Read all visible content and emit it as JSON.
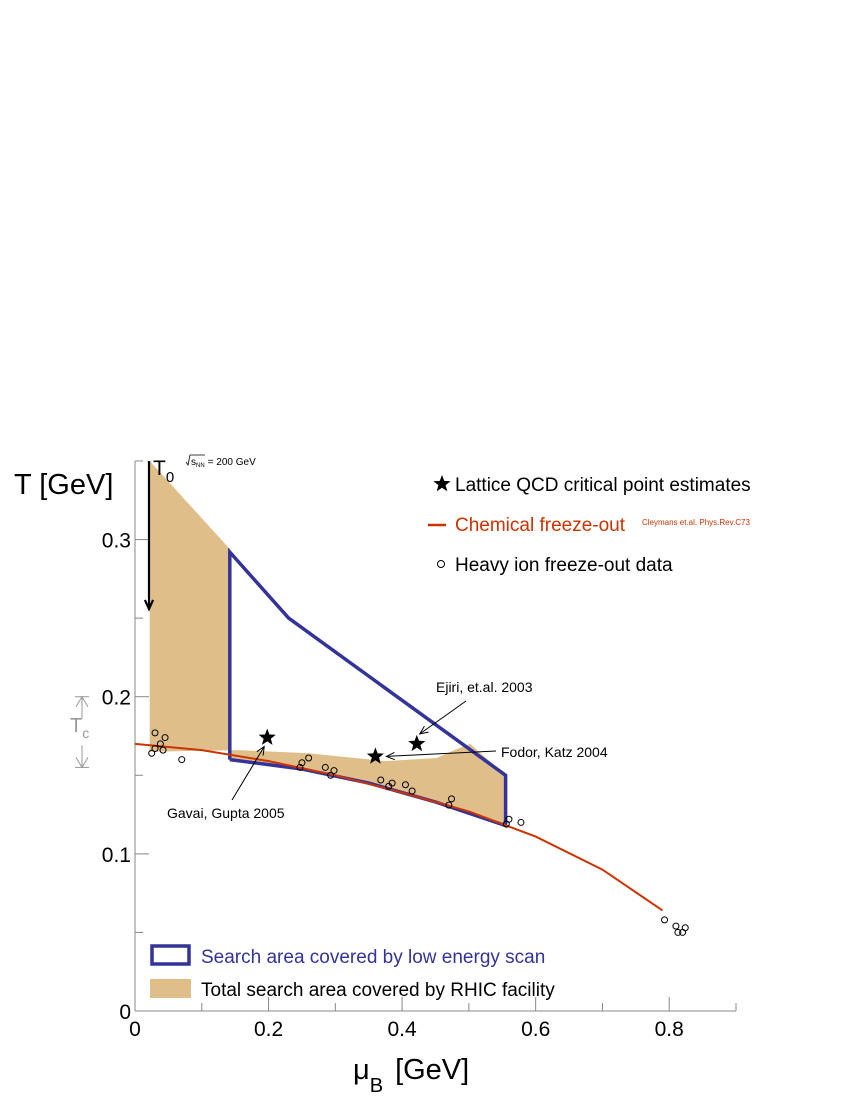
{
  "chart_data": {
    "type": "scatter",
    "xlabel_main": "μ",
    "xlabel_sub": "B",
    "xlabel_unit": "[GeV]",
    "ylabel": "T [GeV]",
    "xlim": [
      0,
      0.9
    ],
    "ylim": [
      0,
      0.35
    ],
    "x_ticks": [
      0,
      0.2,
      0.4,
      0.6,
      0.8
    ],
    "x_tick_labels": [
      "0",
      "0.2",
      "0.4",
      "0.6",
      "0.8"
    ],
    "y_ticks": [
      0,
      0.1,
      0.2,
      0.3
    ],
    "y_tick_labels": [
      "0",
      "0.1",
      "0.2",
      "0.3"
    ],
    "colors": {
      "search_area_fill": "#e0be8a",
      "low_energy_outline": "#33339a",
      "freezeout_curve": "#cc3300",
      "tc_marker": "#999999"
    },
    "total_search_area": [
      [
        0.022,
        0.35
      ],
      [
        0.142,
        0.294
      ],
      [
        0.142,
        0.16
      ],
      [
        0.25,
        0.154
      ],
      [
        0.35,
        0.145
      ],
      [
        0.45,
        0.133
      ],
      [
        0.555,
        0.118
      ],
      [
        0.555,
        0.15
      ],
      [
        0.502,
        0.17
      ],
      [
        0.478,
        0.166
      ],
      [
        0.452,
        0.161
      ],
      [
        0.375,
        0.159
      ],
      [
        0.26,
        0.164
      ],
      [
        0.155,
        0.166
      ],
      [
        0.022,
        0.165
      ]
    ],
    "low_energy_scan_area": [
      [
        0.142,
        0.16
      ],
      [
        0.142,
        0.292
      ],
      [
        0.23,
        0.25
      ],
      [
        0.555,
        0.15
      ],
      [
        0.555,
        0.118
      ],
      [
        0.45,
        0.133
      ],
      [
        0.35,
        0.145
      ],
      [
        0.25,
        0.154
      ],
      [
        0.142,
        0.16
      ]
    ],
    "freezeout_curve": {
      "name": "Chemical freeze-out",
      "points": [
        [
          0.0,
          0.17
        ],
        [
          0.1,
          0.166
        ],
        [
          0.2,
          0.159
        ],
        [
          0.3,
          0.15
        ],
        [
          0.4,
          0.139
        ],
        [
          0.5,
          0.127
        ],
        [
          0.6,
          0.111
        ],
        [
          0.7,
          0.09
        ],
        [
          0.79,
          0.064
        ]
      ]
    },
    "heavy_ion_data": {
      "name": "Heavy ion freeze-out data",
      "points": [
        [
          0.025,
          0.164
        ],
        [
          0.03,
          0.167
        ],
        [
          0.03,
          0.177
        ],
        [
          0.038,
          0.17
        ],
        [
          0.042,
          0.166
        ],
        [
          0.045,
          0.174
        ],
        [
          0.07,
          0.16
        ],
        [
          0.247,
          0.155
        ],
        [
          0.25,
          0.158
        ],
        [
          0.26,
          0.161
        ],
        [
          0.285,
          0.155
        ],
        [
          0.293,
          0.15
        ],
        [
          0.298,
          0.153
        ],
        [
          0.368,
          0.147
        ],
        [
          0.38,
          0.143
        ],
        [
          0.385,
          0.145
        ],
        [
          0.405,
          0.144
        ],
        [
          0.415,
          0.14
        ],
        [
          0.47,
          0.131
        ],
        [
          0.474,
          0.135
        ],
        [
          0.556,
          0.119
        ],
        [
          0.56,
          0.122
        ],
        [
          0.578,
          0.12
        ],
        [
          0.793,
          0.058
        ],
        [
          0.81,
          0.054
        ],
        [
          0.813,
          0.05
        ],
        [
          0.82,
          0.05
        ],
        [
          0.824,
          0.053
        ]
      ]
    },
    "lattice_points": {
      "name": "Lattice QCD critical point estimates",
      "points": [
        {
          "label": "Gavai, Gupta 2005",
          "x": 0.198,
          "y": 0.174
        },
        {
          "label": "Fodor, Katz 2004",
          "x": 0.36,
          "y": 0.162
        },
        {
          "label": "Ejiri, et.al. 2003",
          "x": 0.422,
          "y": 0.17
        }
      ]
    },
    "legend": {
      "placement": "top-right",
      "star_label": "Lattice QCD critical point estimates",
      "curve_label": "Chemical freeze-out",
      "curve_ref": "Cleymans et.al. Phys.Rev.C73",
      "circle_label": "Heavy ion freeze-out data"
    },
    "legend_bottom": {
      "placement": "bottom-left",
      "outline_label": "Search area covered by low energy scan",
      "fill_label": "Total search area covered by RHIC facility"
    },
    "t0_label": "T",
    "t0_sub": "0",
    "sqrt_s_label": "s",
    "sqrt_s_sub": "NN",
    "sqrt_s_value": "= 200 GeV",
    "tc_label": "T",
    "tc_sub": "c"
  }
}
